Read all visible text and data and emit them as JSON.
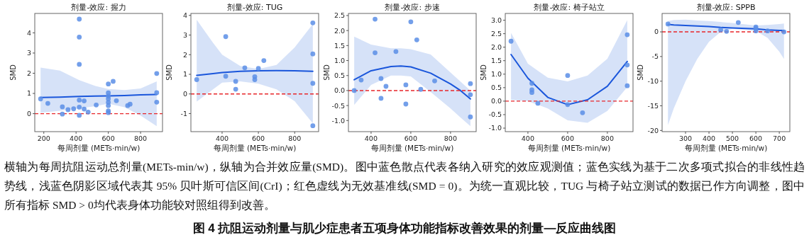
{
  "chart_data": [
    {
      "type": "scatter",
      "title": "剂量-效应: 握力",
      "xlabel": "每周剂量 (METs·min/w)",
      "ylabel": "SMD",
      "xlim": [
        144,
        936
      ],
      "ylim": [
        -0.89,
        4.96
      ],
      "xticks": [
        200,
        400,
        600,
        800
      ],
      "yticks": [
        0,
        1,
        2,
        3,
        4
      ],
      "marker": "circle",
      "series": [
        {
          "color": "#5b8ee6",
          "x": [
            180,
            225,
            315,
            315,
            350,
            385,
            420,
            420,
            420,
            420,
            420,
            420,
            450,
            450,
            475,
            525,
            600,
            600,
            600,
            600,
            600,
            600,
            600,
            600,
            630,
            650,
            720,
            735,
            900,
            900,
            900
          ],
          "values": [
            0.73,
            0.51,
            0.34,
            -0.02,
            0.2,
            0.24,
            4.68,
            3.79,
            2.44,
            0.67,
            0.32,
            -0.08,
            0.63,
            0.23,
            0.08,
            0.43,
            1.47,
            1.03,
            0.87,
            0.73,
            0.56,
            0.4,
            0.14,
            0.05,
            1.6,
            0.64,
            0.4,
            0.47,
            1.99,
            1.04,
            0.57
          ]
        },
        {
          "type": "line",
          "color": "#1a56db",
          "marker": "none",
          "x": [
            180,
            300,
            420,
            520,
            600,
            700,
            800,
            900
          ],
          "values": [
            0.8,
            0.82,
            0.85,
            0.87,
            0.88,
            0.9,
            0.93,
            0.95
          ],
          "lower": [
            0.05,
            0.14,
            0.26,
            0.37,
            0.49,
            0.32,
            -0.09,
            -0.62
          ],
          "upper": [
            2.28,
            2.13,
            1.66,
            1.37,
            1.22,
            1.17,
            1.25,
            1.6
          ]
        }
      ],
      "ref_lines": [
        {
          "axis": "y",
          "value": 0,
          "color": "#e8262a",
          "line_style": "dashed"
        }
      ]
    },
    {
      "type": "scatter",
      "title": "剂量-效应: TUG",
      "xlabel": "每周剂量 (METs·min/w)",
      "ylabel": "SMD",
      "xlim": [
        228,
        932
      ],
      "ylim": [
        -1.92,
        4.1
      ],
      "xticks": [
        400,
        600,
        800
      ],
      "yticks": [
        -1,
        0,
        1,
        2,
        3,
        4
      ],
      "marker": "circle",
      "series": [
        {
          "color": "#5b8ee6",
          "x": [
            260,
            420,
            420,
            475,
            475,
            525,
            580,
            580,
            600,
            630,
            900,
            900,
            900,
            900
          ],
          "values": [
            0.73,
            2.92,
            0.9,
            0.64,
            0.24,
            1.33,
            0.88,
            0.73,
            1.3,
            1.7,
            3.62,
            2.04,
            0.54,
            -1.62
          ]
        },
        {
          "type": "line",
          "color": "#1a56db",
          "marker": "none",
          "x": [
            260,
            350,
            400,
            500,
            600,
            700,
            800,
            900
          ],
          "values": [
            0.95,
            1.04,
            1.09,
            1.15,
            1.18,
            1.19,
            1.18,
            1.15
          ],
          "lower": [
            -0.39,
            0.23,
            0.58,
            0.64,
            0.52,
            0.23,
            -0.37,
            -1.5
          ],
          "upper": [
            3.78,
            2.6,
            2.0,
            1.42,
            1.27,
            1.48,
            2.37,
            3.56
          ]
        }
      ],
      "ref_lines": [
        {
          "axis": "y",
          "value": 0,
          "color": "#e8262a",
          "line_style": "dashed"
        }
      ]
    },
    {
      "type": "scatter",
      "title": "剂量-效应: 步速",
      "xlabel": "每周剂量 (METs·min/w)",
      "ylabel": "SMD",
      "xlim": [
        286,
        929
      ],
      "ylim": [
        -1.37,
        2.57
      ],
      "xticks": [
        400,
        600,
        800
      ],
      "yticks": [
        {
          "value": -1,
          "label": "-1.0"
        },
        {
          "value": -0.5,
          "label": "-0.5"
        },
        {
          "value": 0,
          "label": "0.0"
        },
        {
          "value": 0.5,
          "label": "0.5"
        },
        {
          "value": 1,
          "label": "1.0"
        },
        {
          "value": 1.5,
          "label": "1.5"
        },
        {
          "value": 2,
          "label": "2.0"
        },
        {
          "value": 2.5,
          "label": "2.5"
        }
      ],
      "marker": "circle",
      "series": [
        {
          "color": "#5b8ee6",
          "x": [
            315,
            350,
            420,
            420,
            450,
            450,
            475,
            525,
            575,
            575,
            600,
            630,
            650,
            720,
            900,
            900,
            900
          ],
          "values": [
            0.0,
            0.35,
            2.38,
            1.26,
            0.4,
            -0.26,
            0.14,
            1.3,
            0.19,
            -0.45,
            2.29,
            1.69,
            0.04,
            0.32,
            0.23,
            -0.14,
            -0.88
          ]
        },
        {
          "type": "line",
          "color": "#1a56db",
          "marker": "none",
          "x": [
            315,
            400,
            500,
            550,
            600,
            700,
            800,
            850,
            900
          ],
          "values": [
            0.36,
            0.66,
            0.8,
            0.82,
            0.79,
            0.58,
            0.22,
            0.0,
            -0.28
          ],
          "lower": [
            -0.48,
            0.19,
            0.5,
            0.5,
            0.47,
            -0.05,
            -0.6,
            -0.9,
            -1.19
          ],
          "upper": [
            1.8,
            1.53,
            1.41,
            1.41,
            1.38,
            1.2,
            0.6,
            0.3,
            0.0
          ]
        }
      ],
      "ref_lines": [
        {
          "axis": "y",
          "value": 0,
          "color": "#e8262a",
          "line_style": "dashed"
        }
      ]
    },
    {
      "type": "scatter",
      "title": "剂量-效应: 椅子站立",
      "xlabel": "每周剂量 (METs·min/w)",
      "ylabel": "SMD",
      "xlim": [
        286,
        929
      ],
      "ylim": [
        -1.13,
        3.25
      ],
      "xticks": [
        400,
        600,
        800
      ],
      "yticks": [
        {
          "value": -1,
          "label": "-1.0"
        },
        {
          "value": -0.5,
          "label": "-0.5"
        },
        {
          "value": 0,
          "label": "0.0"
        },
        {
          "value": 0.5,
          "label": "0.5"
        },
        {
          "value": 1,
          "label": "1.0"
        },
        {
          "value": 1.5,
          "label": "1.5"
        },
        {
          "value": 2,
          "label": "2.0"
        },
        {
          "value": 2.5,
          "label": "2.5"
        },
        {
          "value": 3,
          "label": "3.0"
        }
      ],
      "marker": "circle",
      "series": [
        {
          "color": "#5b8ee6",
          "x": [
            315,
            420,
            420,
            420,
            450,
            600,
            600,
            675,
            900,
            900,
            900
          ],
          "values": [
            2.22,
            0.66,
            0.42,
            0.32,
            -0.08,
            0.95,
            -0.13,
            -0.43,
            2.46,
            1.34,
            0.57
          ]
        },
        {
          "type": "line",
          "color": "#1a56db",
          "marker": "none",
          "x": [
            315,
            400,
            500,
            600,
            700,
            800,
            900
          ],
          "values": [
            1.73,
            0.85,
            0.14,
            -0.13,
            0.05,
            0.55,
            1.47
          ],
          "lower": [
            0.05,
            0.0,
            -0.27,
            -0.71,
            -0.8,
            -0.36,
            0.52
          ],
          "upper": [
            2.53,
            1.39,
            0.87,
            0.73,
            0.95,
            1.57,
            3.0
          ]
        }
      ],
      "ref_lines": [
        {
          "axis": "y",
          "value": 0,
          "color": "#e8262a",
          "line_style": "dashed"
        }
      ]
    },
    {
      "type": "scatter",
      "title": "剂量-效应: SPPB",
      "xlabel": "每周剂量 (METs·min/w)",
      "ylabel": "SMD",
      "xlim": [
        200,
        745
      ],
      "ylim": [
        -20.24,
        3.74
      ],
      "xticks": [
        300,
        400,
        500,
        600,
        700
      ],
      "yticks": [
        -20,
        -15,
        -10,
        -5,
        0
      ],
      "marker": "circle",
      "series": [
        {
          "color": "#5b8ee6",
          "x": [
            225,
            450,
            475,
            525,
            600,
            600,
            600,
            650,
            720
          ],
          "values": [
            1.6,
            0.4,
            0.1,
            1.9,
            1.0,
            0.7,
            0.2,
            0.2,
            0.0
          ]
        },
        {
          "type": "line",
          "color": "#1a56db",
          "marker": "none",
          "x": [
            225,
            250,
            300,
            350,
            400,
            450,
            500,
            600,
            650,
            700,
            720
          ],
          "values": [
            1.5,
            1.4,
            1.3,
            1.2,
            1.1,
            0.9,
            0.8,
            0.6,
            0.4,
            0.3,
            0.3
          ],
          "lower": [
            -18.9,
            -15.5,
            -10,
            -5.5,
            -2,
            0,
            0.6,
            0.2,
            -1.2,
            -4,
            -5.5
          ],
          "upper": [
            2.2,
            2.4,
            2.5,
            2.3,
            2.2,
            2.0,
            1.8,
            1.3,
            1.4,
            1.6,
            1.7
          ]
        }
      ],
      "ref_lines": [
        {
          "axis": "y",
          "value": 0,
          "color": "#e8262a",
          "line_style": "dashed"
        }
      ]
    },
    {
      "type": "other",
      "title": "图 4  抗阻运动剂量与肌少症患者五项身体功能指标改善效果的剂量—反应曲线图",
      "annotations": [
        "横轴为每周抗阻运动总剂量(METs-min/w)，纵轴为合并效应量(SMD)。图中蓝色散点代表各纳入研究的效应观测值；蓝色实线为基于二次多项式拟合的非线性趋势线，浅蓝色阴影区域代表其 95% 贝叶斯可信区间(CrI)；红色虚线为无效基准线(SMD = 0)。为统一直观比较，TUG 与椅子站立测试的数据已作方向调整，图中所有指标 SMD > 0均代表身体功能较对照组得到改善。"
      ]
    }
  ]
}
